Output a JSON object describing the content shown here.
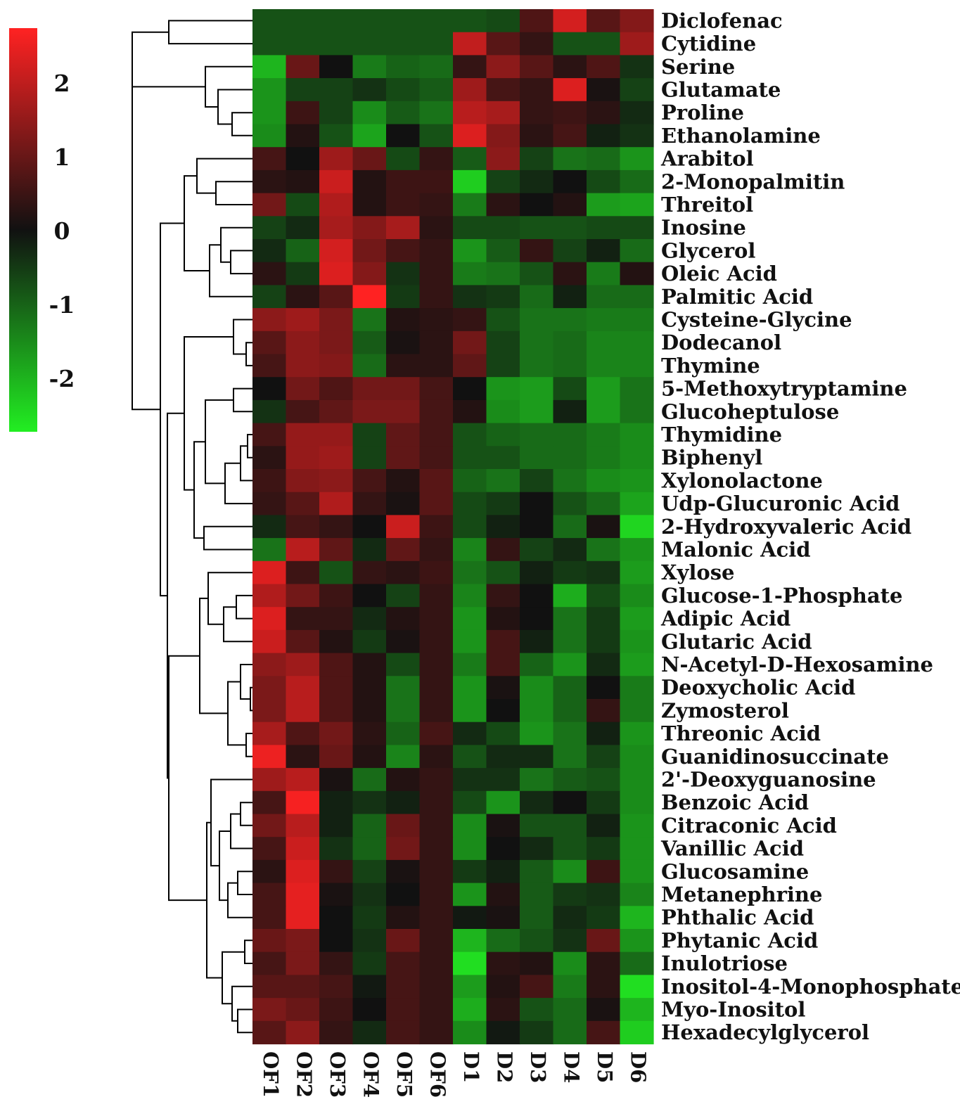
{
  "chart_data": {
    "type": "heatmap",
    "title": "",
    "columns": [
      "OF1",
      "OF2",
      "OF3",
      "OF4",
      "OF5",
      "OF6",
      "D1",
      "D2",
      "D3",
      "D4",
      "D5",
      "D6"
    ],
    "rows": [
      "Diclofenac",
      "Cytidine",
      "Serine",
      "Glutamate",
      "Proline",
      "Ethanolamine",
      "Arabitol",
      "2-Monopalmitin",
      "Threitol",
      "Inosine",
      "Glycerol",
      "Oleic Acid",
      "Palmitic Acid",
      "Cysteine-Glycine",
      "Dodecanol",
      "Thymine",
      "5-Methoxytryptamine",
      "Glucoheptulose",
      "Thymidine",
      "Biphenyl",
      "Xylonolactone",
      "Udp-Glucuronic Acid",
      "2-Hydroxyvaleric Acid",
      "Malonic Acid",
      "Xylose",
      "Glucose-1-Phosphate",
      "Adipic Acid",
      "Glutaric Acid",
      "N-Acetyl-D-Hexosamine",
      "Deoxycholic Acid",
      "Zymosterol",
      "Threonic Acid",
      "Guanidinosuccinate",
      "2'-Deoxyguanosine",
      "Benzoic Acid",
      "Citraconic Acid",
      "Vanillic Acid",
      "Glucosamine",
      "Metanephrine",
      "Phthalic Acid",
      "Phytanic Acid",
      "Inulotriose",
      "Inositol-4-Monophosphate",
      "Myo-Inositol",
      "Hexadecylglycerol"
    ],
    "values": [
      [
        -0.8,
        -0.8,
        -0.8,
        -0.8,
        -0.8,
        -0.8,
        -0.8,
        -0.7,
        0.7,
        2.2,
        0.8,
        1.3
      ],
      [
        -0.8,
        -0.8,
        -0.8,
        -0.8,
        -0.8,
        -0.8,
        2.0,
        0.8,
        0.4,
        -0.8,
        -0.8,
        1.6
      ],
      [
        -2.0,
        1.0,
        0.0,
        -1.3,
        -1.0,
        -1.1,
        0.4,
        1.4,
        0.8,
        0.3,
        0.7,
        -0.4
      ],
      [
        -1.6,
        -0.6,
        -0.6,
        -0.4,
        -0.7,
        -0.9,
        1.6,
        0.6,
        0.4,
        2.3,
        0.1,
        -0.6
      ],
      [
        -1.6,
        0.5,
        -0.6,
        -1.5,
        -0.9,
        -1.2,
        1.9,
        1.7,
        0.4,
        0.5,
        0.3,
        -0.3
      ],
      [
        -1.5,
        0.2,
        -0.8,
        -1.8,
        0.0,
        -0.8,
        2.3,
        1.3,
        0.3,
        0.6,
        -0.2,
        -0.4
      ],
      [
        0.6,
        0.0,
        1.6,
        1.0,
        -0.7,
        0.4,
        -0.9,
        1.4,
        -0.6,
        -1.2,
        -1.1,
        -1.6
      ],
      [
        0.3,
        0.2,
        2.1,
        0.2,
        0.5,
        0.5,
        -2.3,
        -0.6,
        -0.3,
        0.0,
        -0.7,
        -1.1
      ],
      [
        1.1,
        -0.7,
        1.8,
        0.2,
        0.5,
        0.4,
        -1.3,
        0.3,
        0.0,
        0.2,
        -1.7,
        -1.8
      ],
      [
        -0.6,
        -0.3,
        1.7,
        1.3,
        1.7,
        0.3,
        -0.7,
        -0.7,
        -0.8,
        -0.8,
        -0.7,
        -0.7
      ],
      [
        -0.3,
        -1.0,
        2.2,
        1.1,
        0.6,
        0.4,
        -1.6,
        -0.9,
        0.4,
        -0.6,
        -0.2,
        -1.1
      ],
      [
        0.3,
        -0.5,
        2.3,
        1.3,
        -0.4,
        0.4,
        -1.3,
        -1.2,
        -0.8,
        0.3,
        -1.3,
        0.2
      ],
      [
        -0.6,
        0.3,
        0.8,
        2.7,
        -0.5,
        0.4,
        -0.4,
        -0.5,
        -1.1,
        -0.2,
        -1.1,
        -1.1
      ],
      [
        1.4,
        1.6,
        1.2,
        -1.2,
        0.2,
        0.3,
        0.4,
        -0.8,
        -1.2,
        -1.2,
        -1.3,
        -1.3
      ],
      [
        0.8,
        1.4,
        1.2,
        -0.9,
        0.1,
        0.3,
        1.1,
        -0.6,
        -1.2,
        -1.1,
        -1.4,
        -1.4
      ],
      [
        0.6,
        1.4,
        1.3,
        -1.1,
        0.3,
        0.3,
        0.9,
        -0.6,
        -1.2,
        -1.1,
        -1.4,
        -1.4
      ],
      [
        0.0,
        1.1,
        0.7,
        1.1,
        1.1,
        0.6,
        0.0,
        -1.6,
        -1.7,
        -0.7,
        -1.7,
        -1.2
      ],
      [
        -0.4,
        0.6,
        0.9,
        1.2,
        1.2,
        0.6,
        0.2,
        -1.5,
        -1.7,
        -0.2,
        -1.7,
        -1.2
      ],
      [
        0.6,
        1.5,
        1.5,
        -0.6,
        0.9,
        0.6,
        -0.8,
        -1.0,
        -1.1,
        -1.1,
        -1.3,
        -1.5
      ],
      [
        0.3,
        1.5,
        1.6,
        -0.6,
        0.9,
        0.6,
        -0.8,
        -0.8,
        -1.1,
        -1.1,
        -1.3,
        -1.5
      ],
      [
        0.5,
        1.3,
        1.4,
        0.6,
        0.2,
        0.8,
        -1.0,
        -1.2,
        -0.6,
        -1.2,
        -1.5,
        -1.6
      ],
      [
        0.4,
        0.8,
        1.8,
        0.4,
        0.1,
        0.8,
        -0.7,
        -0.5,
        0.0,
        -0.8,
        -1.1,
        -1.8
      ],
      [
        -0.3,
        0.6,
        0.4,
        0.0,
        2.1,
        0.5,
        -0.7,
        -0.2,
        0.0,
        -1.1,
        0.1,
        -2.4
      ],
      [
        -1.2,
        1.9,
        0.9,
        -0.3,
        0.9,
        0.4,
        -1.4,
        0.4,
        -0.6,
        -0.3,
        -1.2,
        -1.6
      ],
      [
        2.3,
        0.5,
        -0.8,
        0.4,
        0.3,
        0.5,
        -1.2,
        -0.8,
        -0.2,
        -0.5,
        -0.4,
        -1.7
      ],
      [
        1.8,
        1.1,
        0.5,
        0.0,
        -0.6,
        0.4,
        -1.4,
        0.4,
        0.0,
        -1.9,
        -0.7,
        -1.5
      ],
      [
        2.3,
        0.4,
        0.4,
        -0.3,
        0.2,
        0.4,
        -1.6,
        0.2,
        0.0,
        -1.2,
        -0.5,
        -1.7
      ],
      [
        2.1,
        0.8,
        0.2,
        -0.5,
        0.1,
        0.4,
        -1.6,
        0.6,
        -0.2,
        -1.2,
        -0.5,
        -1.6
      ],
      [
        1.4,
        1.6,
        0.7,
        0.2,
        -0.7,
        0.4,
        -1.3,
        0.6,
        -1.0,
        -1.6,
        -0.3,
        -1.7
      ],
      [
        1.2,
        1.9,
        0.7,
        0.2,
        -1.2,
        0.4,
        -1.6,
        0.1,
        -1.5,
        -1.0,
        0.0,
        -1.3
      ],
      [
        1.2,
        1.9,
        0.7,
        0.2,
        -1.2,
        0.4,
        -1.6,
        0.0,
        -1.5,
        -1.0,
        0.4,
        -1.3
      ],
      [
        1.7,
        0.7,
        1.1,
        0.3,
        -1.0,
        0.6,
        -0.3,
        -0.7,
        -1.6,
        -1.2,
        -0.2,
        -1.6
      ],
      [
        2.5,
        0.3,
        1.0,
        0.2,
        -1.4,
        0.3,
        -0.8,
        -0.3,
        -0.3,
        -1.2,
        -0.6,
        -1.5
      ],
      [
        1.6,
        1.9,
        0.1,
        -1.1,
        0.2,
        0.4,
        -0.4,
        -0.4,
        -1.2,
        -0.9,
        -0.8,
        -1.5
      ],
      [
        0.6,
        2.6,
        -0.2,
        -0.4,
        -0.2,
        0.4,
        -0.7,
        -1.6,
        -0.3,
        0.0,
        -0.5,
        -1.5
      ],
      [
        1.1,
        1.9,
        -0.2,
        -1.0,
        1.0,
        0.4,
        -1.5,
        0.1,
        -0.8,
        -0.8,
        -0.2,
        -1.6
      ],
      [
        0.6,
        2.1,
        -0.4,
        -1.0,
        1.1,
        0.4,
        -1.5,
        0.0,
        -0.3,
        -0.8,
        -0.5,
        -1.6
      ],
      [
        0.3,
        2.3,
        0.4,
        -0.6,
        0.1,
        0.4,
        -0.5,
        -0.2,
        -0.9,
        -1.5,
        0.5,
        -1.6
      ],
      [
        0.6,
        2.4,
        0.1,
        -0.4,
        0.0,
        0.4,
        -1.6,
        0.2,
        -0.9,
        -0.5,
        -0.4,
        -1.4
      ],
      [
        0.6,
        2.4,
        0.0,
        -0.5,
        0.2,
        0.4,
        -0.1,
        0.1,
        -0.9,
        -0.3,
        -0.5,
        -2.0
      ],
      [
        1.0,
        1.2,
        0.0,
        -0.4,
        1.0,
        0.4,
        -2.0,
        -1.1,
        -0.8,
        -0.4,
        1.0,
        -1.6
      ],
      [
        0.6,
        1.2,
        0.4,
        -0.5,
        0.6,
        0.4,
        -2.5,
        0.3,
        0.2,
        -1.5,
        0.3,
        -1.1
      ],
      [
        0.8,
        0.8,
        0.6,
        -0.1,
        0.6,
        0.4,
        -1.7,
        0.2,
        0.6,
        -1.3,
        0.3,
        -2.5
      ],
      [
        1.2,
        1.0,
        0.5,
        0.0,
        0.6,
        0.4,
        -1.9,
        0.3,
        -0.8,
        -1.1,
        0.1,
        -2.0
      ],
      [
        0.8,
        1.4,
        0.4,
        -0.3,
        0.6,
        0.4,
        -1.5,
        -0.1,
        -0.5,
        -1.1,
        0.6,
        -2.3
      ]
    ],
    "color_scale": {
      "min": -2.7,
      "max": 2.7,
      "low": "#22ee22",
      "mid": "#111111",
      "high": "#ff2222",
      "ticks": [
        "2",
        "1",
        "0",
        "-1",
        "-2"
      ]
    },
    "row_clustering": true,
    "column_clustering": false
  }
}
